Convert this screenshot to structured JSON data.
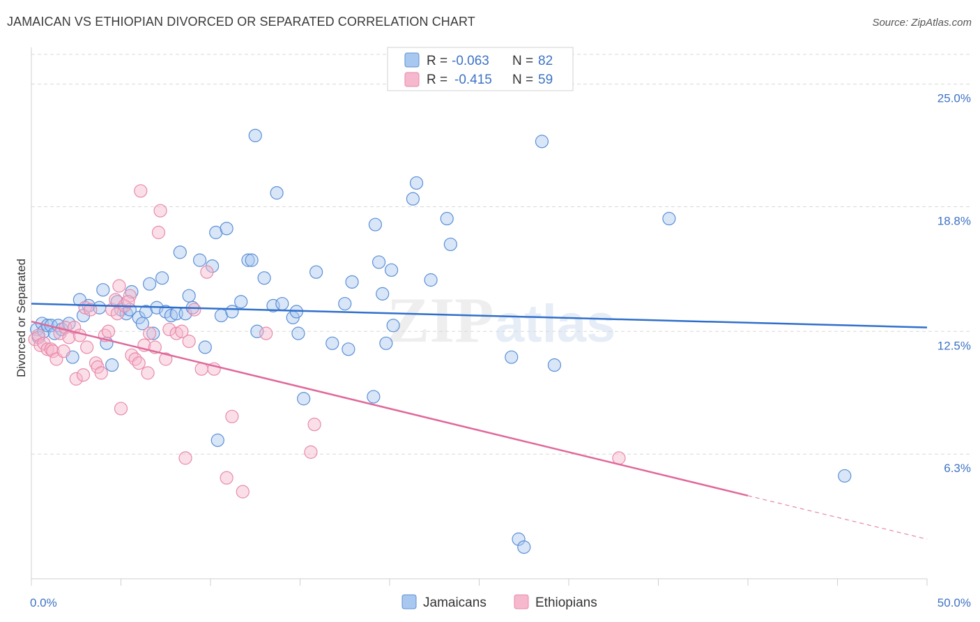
{
  "header": {
    "title": "JAMAICAN VS ETHIOPIAN DIVORCED OR SEPARATED CORRELATION CHART",
    "source": "Source: ZipAtlas.com"
  },
  "colors": {
    "jamaicans_fill": "#a9c8f0",
    "jamaicans_stroke": "#5b8fd6",
    "jamaicans_line": "#2f6fcb",
    "ethiopians_fill": "#f6b8cc",
    "ethiopians_stroke": "#e889aa",
    "ethiopians_line": "#e0689a",
    "tick_label": "#3d72c4",
    "grid": "#d8d8d8"
  },
  "legend": {
    "rows": [
      {
        "r_label": "R =",
        "r_value": "-0.063",
        "n_label": "N =",
        "n_value": "82"
      },
      {
        "r_label": "R =",
        "r_value": "-0.415",
        "n_label": "N =",
        "n_value": "59"
      }
    ]
  },
  "watermark": {
    "zip": "ZIP",
    "atlas": "atlas"
  },
  "chart_data": {
    "type": "scatter",
    "title": "JAMAICAN VS ETHIOPIAN DIVORCED OR SEPARATED CORRELATION CHART",
    "xlabel": "",
    "ylabel": "Divorced or Separated",
    "xlim": [
      0,
      50
    ],
    "ylim": [
      0,
      26.5
    ],
    "x_tick_labels": [
      {
        "value": 0,
        "label": "0.0%"
      },
      {
        "value": 50,
        "label": "50.0%"
      }
    ],
    "y_tick_labels": [
      {
        "value": 6.3,
        "label": "6.3%"
      },
      {
        "value": 12.5,
        "label": "12.5%"
      },
      {
        "value": 18.8,
        "label": "18.8%"
      },
      {
        "value": 25.0,
        "label": "25.0%"
      }
    ],
    "x_minor_ticks": [
      0,
      5,
      10,
      15,
      20,
      25,
      30,
      35,
      40,
      45,
      50
    ],
    "series": [
      {
        "name": "Jamaicans",
        "r": -0.063,
        "n": 82,
        "trend": {
          "x": [
            0,
            50
          ],
          "y": [
            13.9,
            12.7
          ],
          "dashed_from": null
        },
        "points": [
          [
            0.3,
            12.6
          ],
          [
            0.4,
            12.2
          ],
          [
            0.6,
            12.9
          ],
          [
            0.7,
            12.5
          ],
          [
            0.9,
            12.8
          ],
          [
            1.1,
            12.8
          ],
          [
            1.3,
            12.4
          ],
          [
            1.5,
            12.8
          ],
          [
            1.7,
            12.6
          ],
          [
            2.1,
            12.9
          ],
          [
            2.3,
            11.2
          ],
          [
            2.9,
            13.3
          ],
          [
            2.7,
            14.1
          ],
          [
            3.2,
            13.8
          ],
          [
            3.8,
            13.7
          ],
          [
            4.0,
            14.6
          ],
          [
            4.2,
            11.9
          ],
          [
            4.5,
            10.8
          ],
          [
            4.8,
            14.0
          ],
          [
            5.0,
            13.6
          ],
          [
            5.3,
            13.4
          ],
          [
            5.5,
            13.6
          ],
          [
            5.6,
            14.5
          ],
          [
            6.0,
            13.2
          ],
          [
            6.2,
            12.9
          ],
          [
            6.4,
            13.5
          ],
          [
            6.6,
            14.9
          ],
          [
            6.8,
            12.4
          ],
          [
            7.0,
            13.7
          ],
          [
            7.3,
            15.2
          ],
          [
            7.5,
            13.5
          ],
          [
            7.8,
            13.3
          ],
          [
            8.1,
            13.4
          ],
          [
            8.3,
            16.5
          ],
          [
            8.6,
            13.4
          ],
          [
            8.8,
            14.3
          ],
          [
            9.0,
            13.7
          ],
          [
            9.4,
            16.1
          ],
          [
            9.7,
            11.7
          ],
          [
            10.1,
            15.8
          ],
          [
            10.3,
            17.5
          ],
          [
            10.6,
            13.3
          ],
          [
            10.9,
            17.7
          ],
          [
            11.2,
            13.5
          ],
          [
            11.7,
            14.0
          ],
          [
            12.1,
            16.1
          ],
          [
            12.3,
            16.1
          ],
          [
            12.5,
            22.4
          ],
          [
            12.6,
            12.5
          ],
          [
            13.0,
            15.2
          ],
          [
            13.5,
            13.8
          ],
          [
            13.7,
            19.5
          ],
          [
            14.0,
            13.9
          ],
          [
            14.6,
            13.2
          ],
          [
            14.8,
            13.5
          ],
          [
            14.9,
            12.4
          ],
          [
            15.2,
            9.1
          ],
          [
            15.9,
            15.5
          ],
          [
            16.8,
            11.9
          ],
          [
            17.5,
            13.9
          ],
          [
            17.7,
            11.6
          ],
          [
            17.9,
            15.0
          ],
          [
            19.2,
            17.9
          ],
          [
            19.1,
            9.2
          ],
          [
            19.4,
            16.0
          ],
          [
            19.6,
            14.4
          ],
          [
            19.8,
            11.9
          ],
          [
            20.1,
            15.6
          ],
          [
            20.2,
            12.8
          ],
          [
            21.3,
            19.2
          ],
          [
            21.5,
            20.0
          ],
          [
            22.3,
            15.1
          ],
          [
            23.2,
            18.2
          ],
          [
            23.4,
            16.9
          ],
          [
            26.8,
            11.2
          ],
          [
            27.2,
            2.0
          ],
          [
            27.5,
            1.6
          ],
          [
            28.5,
            22.1
          ],
          [
            29.2,
            10.8
          ],
          [
            35.6,
            18.2
          ],
          [
            10.4,
            7.0
          ],
          [
            45.4,
            5.2
          ]
        ]
      },
      {
        "name": "Ethiopians",
        "r": -0.415,
        "n": 59,
        "trend": {
          "x": [
            0,
            50
          ],
          "y": [
            13.0,
            2.0
          ],
          "dashed_from": 40
        },
        "points": [
          [
            0.2,
            12.1
          ],
          [
            0.4,
            12.3
          ],
          [
            0.5,
            11.8
          ],
          [
            0.7,
            11.9
          ],
          [
            0.9,
            11.6
          ],
          [
            1.1,
            11.6
          ],
          [
            1.2,
            11.5
          ],
          [
            1.4,
            11.1
          ],
          [
            1.6,
            12.4
          ],
          [
            1.8,
            11.5
          ],
          [
            1.9,
            12.7
          ],
          [
            2.1,
            12.2
          ],
          [
            2.4,
            12.7
          ],
          [
            2.5,
            10.1
          ],
          [
            2.7,
            12.3
          ],
          [
            2.9,
            10.3
          ],
          [
            3.0,
            13.7
          ],
          [
            3.1,
            11.7
          ],
          [
            3.3,
            13.6
          ],
          [
            3.6,
            10.9
          ],
          [
            3.7,
            10.7
          ],
          [
            3.9,
            10.4
          ],
          [
            4.1,
            12.3
          ],
          [
            4.3,
            12.5
          ],
          [
            4.5,
            13.6
          ],
          [
            4.7,
            14.1
          ],
          [
            4.8,
            13.4
          ],
          [
            4.9,
            14.8
          ],
          [
            5.0,
            8.6
          ],
          [
            5.2,
            13.8
          ],
          [
            5.5,
            14.3
          ],
          [
            5.6,
            11.3
          ],
          [
            5.8,
            11.1
          ],
          [
            6.0,
            10.9
          ],
          [
            6.1,
            19.6
          ],
          [
            6.3,
            11.8
          ],
          [
            6.5,
            10.4
          ],
          [
            6.6,
            12.4
          ],
          [
            6.9,
            11.7
          ],
          [
            7.1,
            17.5
          ],
          [
            7.2,
            18.6
          ],
          [
            7.5,
            11.1
          ],
          [
            7.7,
            12.6
          ],
          [
            8.1,
            12.4
          ],
          [
            8.4,
            12.5
          ],
          [
            8.6,
            6.1
          ],
          [
            8.8,
            12.0
          ],
          [
            9.1,
            13.6
          ],
          [
            9.5,
            10.6
          ],
          [
            9.8,
            15.5
          ],
          [
            10.2,
            10.6
          ],
          [
            10.9,
            5.1
          ],
          [
            11.2,
            8.2
          ],
          [
            11.8,
            4.4
          ],
          [
            13.1,
            12.4
          ],
          [
            15.6,
            6.4
          ],
          [
            15.8,
            7.8
          ],
          [
            32.8,
            6.1
          ],
          [
            5.4,
            14.0
          ]
        ]
      }
    ]
  },
  "bottom_legend": {
    "items": [
      {
        "label": "Jamaicans"
      },
      {
        "label": "Ethiopians"
      }
    ]
  }
}
